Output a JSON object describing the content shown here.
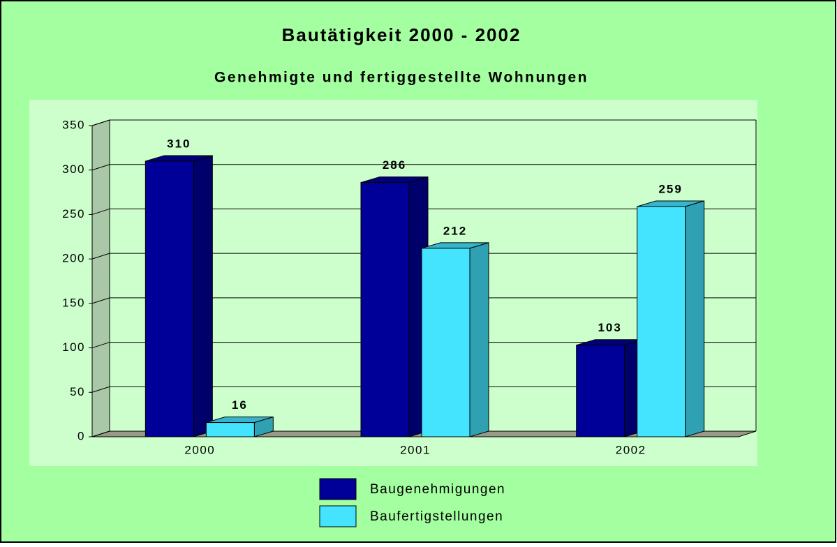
{
  "chart_data": {
    "type": "bar",
    "title": "Bautätigkeit 2000 - 2002",
    "subtitle": "Genehmigte und fertiggestellte Wohnungen",
    "categories": [
      "2000",
      "2001",
      "2002"
    ],
    "series": [
      {
        "name": "Baugenehmigungen",
        "color": "#000099",
        "values": [
          310,
          286,
          103
        ]
      },
      {
        "name": "Baufertigstellungen",
        "color": "#44e4ff",
        "values": [
          16,
          212,
          259
        ]
      }
    ],
    "ylim": [
      0,
      350
    ],
    "yticks": [
      0,
      50,
      100,
      150,
      200,
      250,
      300,
      350
    ],
    "grid": true,
    "legend": "bottom",
    "three_d": true
  }
}
